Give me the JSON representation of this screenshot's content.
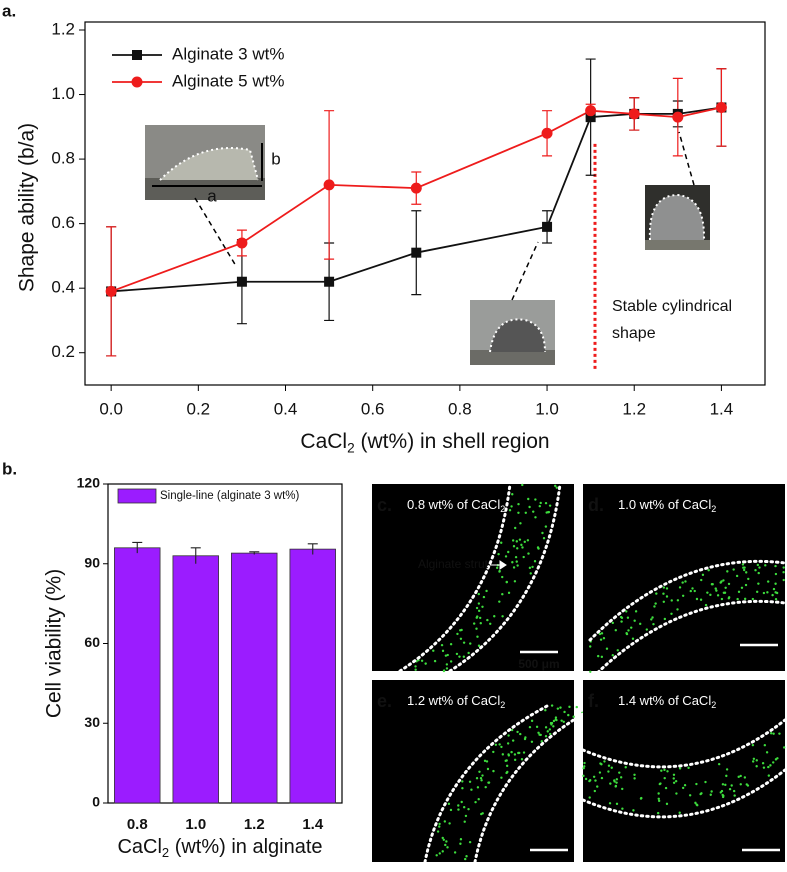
{
  "chart_data": [
    {
      "type": "line",
      "panel": "a.",
      "x": [
        0,
        0.3,
        0.5,
        0.7,
        1,
        1.1,
        1.2,
        1.3,
        1.4
      ],
      "series": [
        {
          "name": "Alginate 3 wt%",
          "color": "#111111",
          "marker": "square",
          "values": [
            0.39,
            0.42,
            0.42,
            0.51,
            0.59,
            0.93,
            0.94,
            0.94,
            0.96
          ],
          "errors": [
            0.2,
            0.13,
            0.12,
            0.13,
            0.05,
            0.18,
            0.05,
            0.04,
            0.12
          ]
        },
        {
          "name": "Alginate 5 wt%",
          "color": "#ee1c1c",
          "marker": "circle",
          "values": [
            0.39,
            0.54,
            0.72,
            0.71,
            0.88,
            0.95,
            0.94,
            0.93,
            0.96
          ],
          "errors": [
            0.2,
            0.04,
            0.23,
            0.05,
            0.07,
            0.02,
            0.05,
            0.12,
            0.12
          ]
        }
      ],
      "xlim": [
        -0.06,
        1.5
      ],
      "xticks": [
        {
          "value": 0,
          "label": "0.0"
        },
        0.2,
        0.4,
        0.6,
        0.8,
        {
          "value": 1,
          "label": "1.0"
        },
        1.2,
        1.4
      ],
      "ylim": [
        0.1,
        1.2
      ],
      "yticks": [
        0.2,
        0.4,
        0.6,
        0.8,
        {
          "value": 1,
          "label": "1.0"
        },
        1.2
      ],
      "y_label": "Shape ability (b/a)",
      "x_label": {
        "text": "CaCl",
        "sub": "2",
        "rest": " (wt%) in shell region"
      },
      "legend": "upper left",
      "reference_line": {
        "x": 1.11,
        "y_range": [
          0.15,
          0.85
        ],
        "color": "#ee1c1c"
      },
      "annotation": [
        "Stable cylindrical",
        "shape"
      ],
      "inset_labels": [
        "a",
        "b"
      ]
    },
    {
      "type": "bar",
      "panel": "b.",
      "categories": [
        "0.8",
        "1.0",
        "1.2",
        "1.4"
      ],
      "series": [
        {
          "name": "Single-line (alginate 3 wt%)",
          "color": "#9b1cff",
          "values": [
            96,
            93,
            94,
            95.5
          ],
          "errors": [
            2,
            3,
            0.5,
            2
          ]
        }
      ],
      "ylim": [
        0,
        120
      ],
      "yticks": [
        0,
        30,
        60,
        90,
        120
      ],
      "y_label": "Cell viability (%)",
      "x_label": {
        "text": "CaCl",
        "sub": "2",
        "rest": " (wt%) in alginate"
      },
      "legend": "upper left"
    }
  ],
  "image_panels": [
    {
      "letter": "c.",
      "label": "0.8 wt% of CaCl",
      "sub": "2",
      "strut": "Alginate strut",
      "scale": "500 μm"
    },
    {
      "letter": "d.",
      "label": "1.0 wt% of CaCl",
      "sub": "2"
    },
    {
      "letter": "e.",
      "label": "1.2 wt% of CaCl",
      "sub": "2"
    },
    {
      "letter": "f.",
      "label": "1.4 wt% of CaCl",
      "sub": "2"
    }
  ]
}
